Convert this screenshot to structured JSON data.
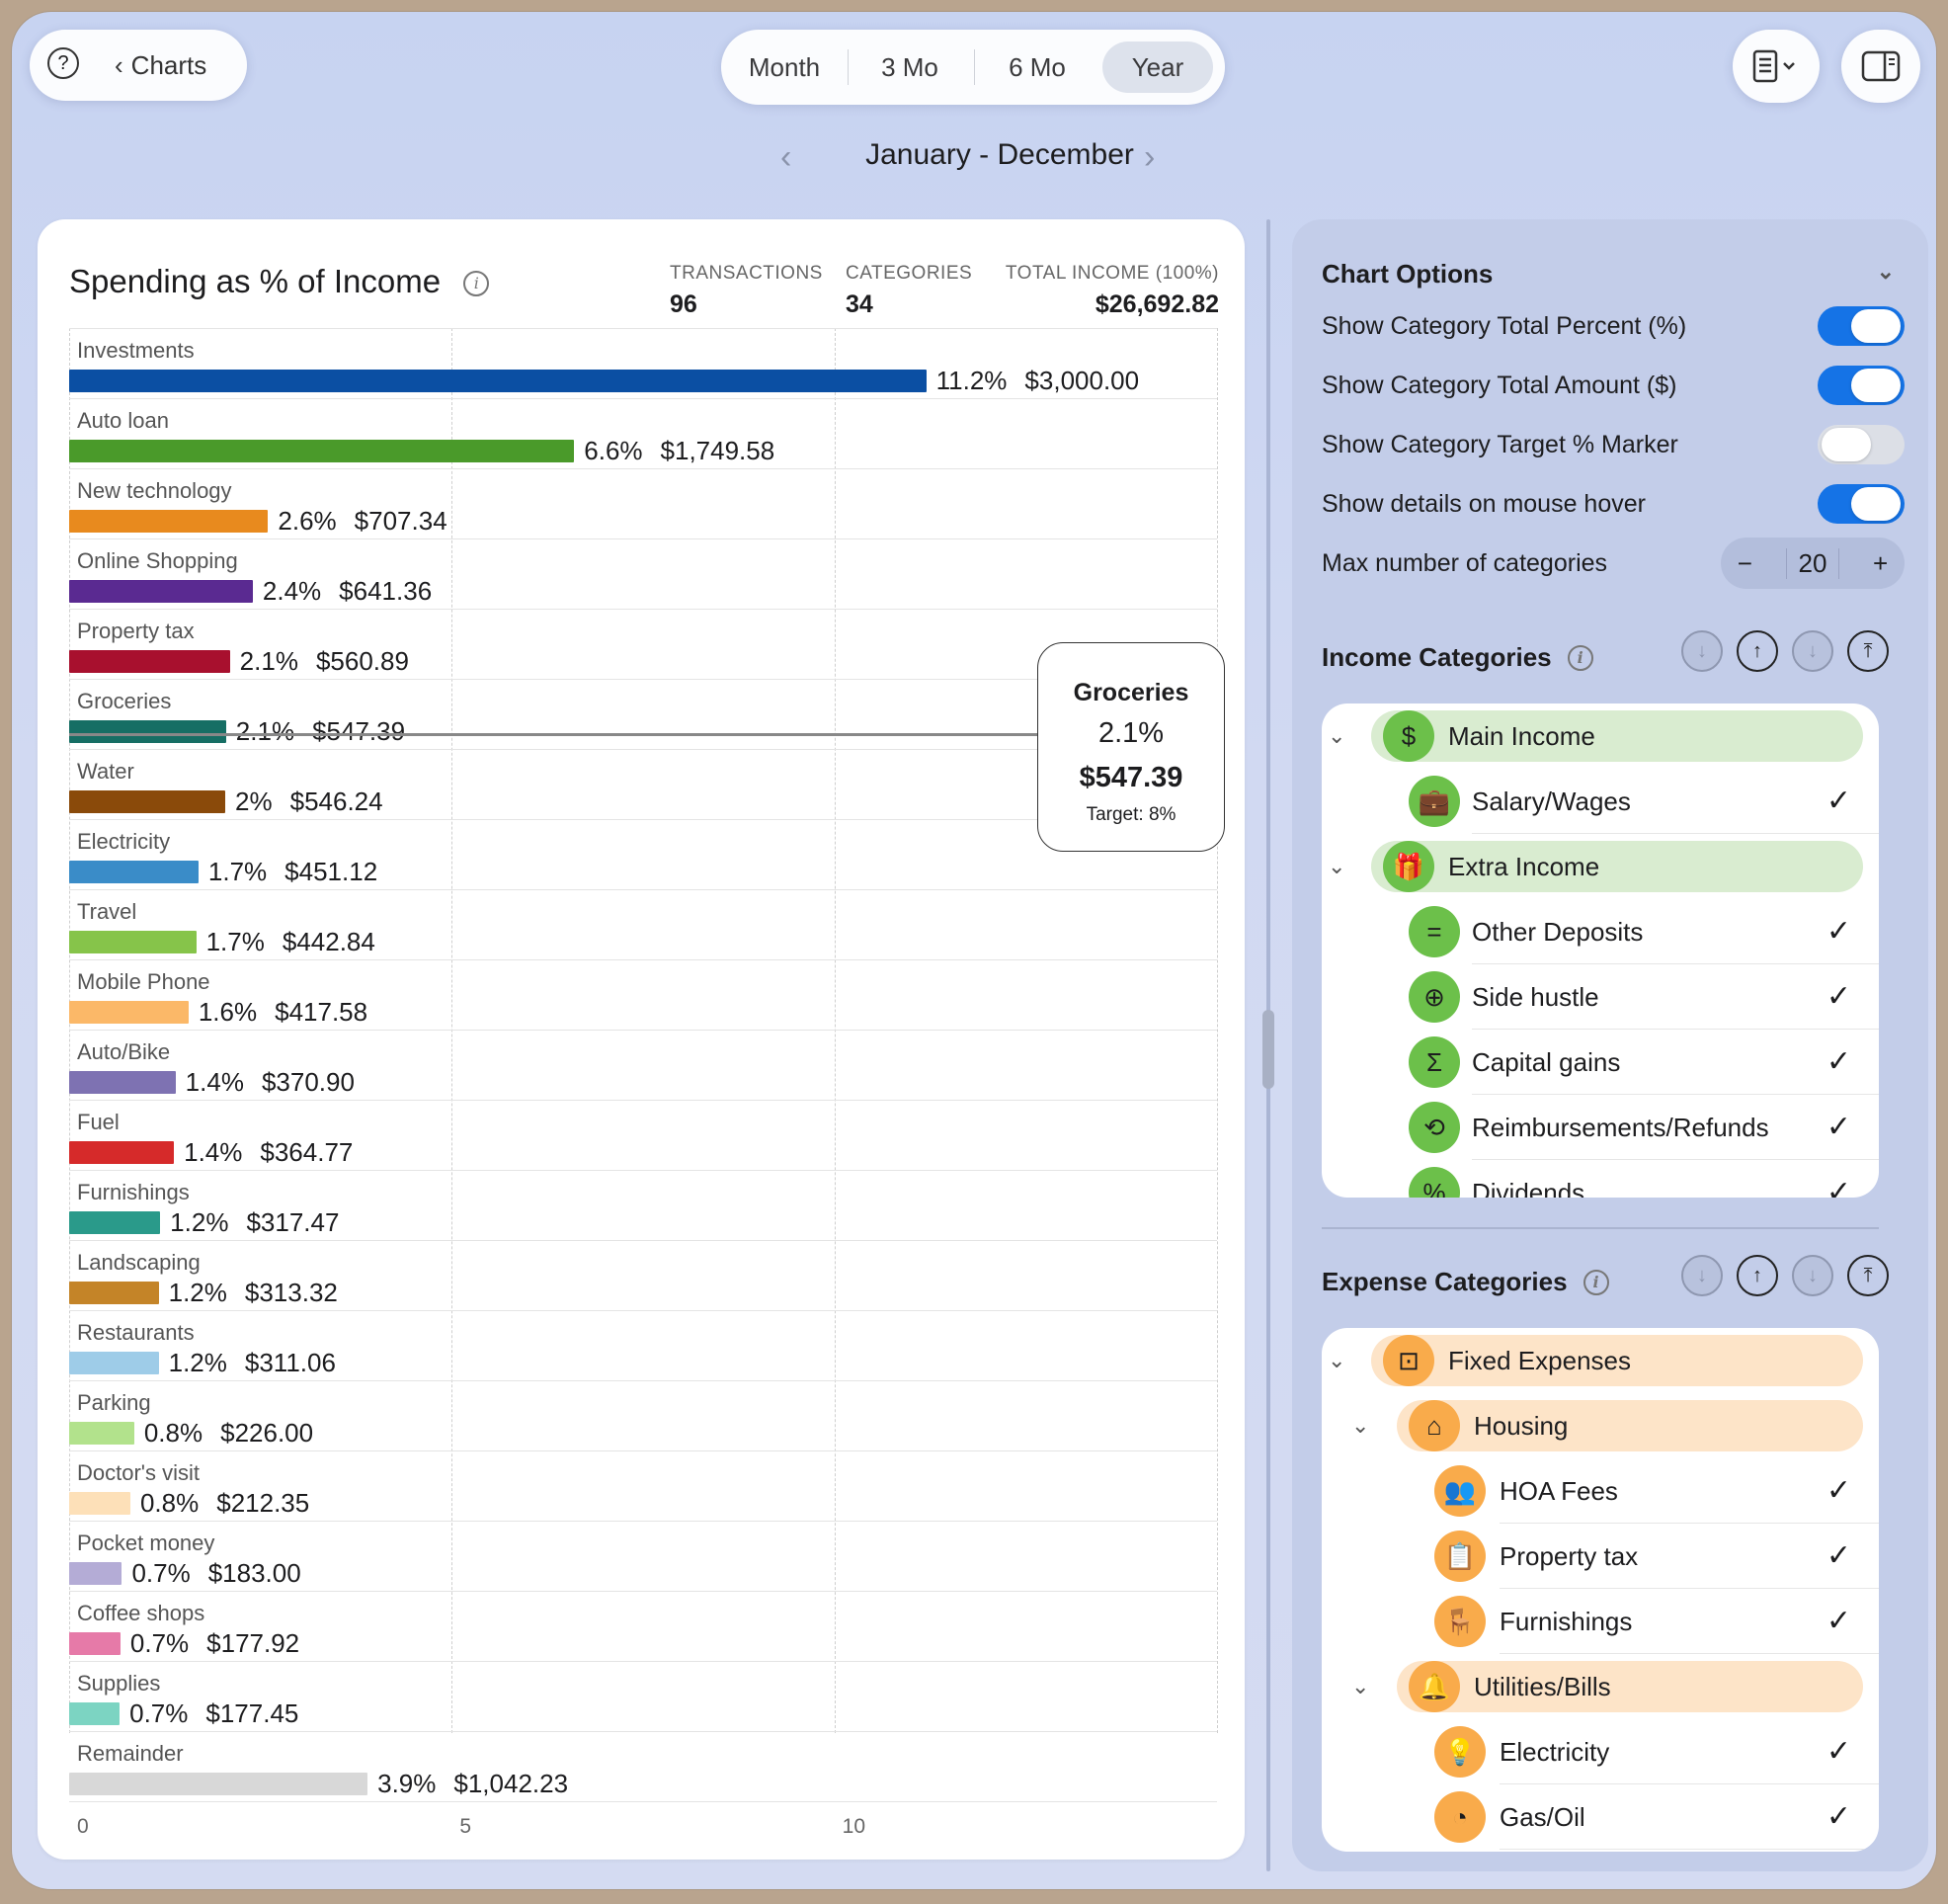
{
  "toolbar": {
    "help_label": "?",
    "back_label": "Charts",
    "segments": [
      "Month",
      "3 Mo",
      "6 Mo",
      "Year"
    ],
    "selected_segment": "Year",
    "period": "January - December"
  },
  "card": {
    "title": "Spending as % of Income",
    "stats": [
      {
        "label": "TRANSACTIONS",
        "value": "96"
      },
      {
        "label": "CATEGORIES",
        "value": "34"
      },
      {
        "label": "TOTAL INCOME (100%)",
        "value": "$26,692.82"
      }
    ]
  },
  "chart_data": {
    "type": "bar",
    "orientation": "horizontal",
    "xlim": [
      0,
      15
    ],
    "xticks": [
      "0",
      "5",
      "10"
    ],
    "bars": [
      {
        "category": "Investments",
        "percent": 11.2,
        "percent_label": "11.2%",
        "amount": "$3,000.00",
        "color": "#0b4fa3"
      },
      {
        "category": "Auto loan",
        "percent": 6.6,
        "percent_label": "6.6%",
        "amount": "$1,749.58",
        "color": "#4a9a2a"
      },
      {
        "category": "New technology",
        "percent": 2.6,
        "percent_label": "2.6%",
        "amount": "$707.34",
        "color": "#e88a1e"
      },
      {
        "category": "Online Shopping",
        "percent": 2.4,
        "percent_label": "2.4%",
        "amount": "$641.36",
        "color": "#5a2a91"
      },
      {
        "category": "Property tax",
        "percent": 2.1,
        "percent_label": "2.1%",
        "amount": "$560.89",
        "color": "#a8102e"
      },
      {
        "category": "Groceries",
        "percent": 2.05,
        "percent_label": "2.1%",
        "amount": "$547.39",
        "color": "#166e64"
      },
      {
        "category": "Water",
        "percent": 2.04,
        "percent_label": "2%",
        "amount": "$546.24",
        "color": "#8a4a0a"
      },
      {
        "category": "Electricity",
        "percent": 1.69,
        "percent_label": "1.7%",
        "amount": "$451.12",
        "color": "#3a8cc8"
      },
      {
        "category": "Travel",
        "percent": 1.66,
        "percent_label": "1.7%",
        "amount": "$442.84",
        "color": "#86c44a"
      },
      {
        "category": "Mobile Phone",
        "percent": 1.56,
        "percent_label": "1.6%",
        "amount": "$417.58",
        "color": "#fbb868"
      },
      {
        "category": "Auto/Bike",
        "percent": 1.39,
        "percent_label": "1.4%",
        "amount": "$370.90",
        "color": "#7e72b2"
      },
      {
        "category": "Fuel",
        "percent": 1.37,
        "percent_label": "1.4%",
        "amount": "$364.77",
        "color": "#d62a2a"
      },
      {
        "category": "Furnishings",
        "percent": 1.19,
        "percent_label": "1.2%",
        "amount": "$317.47",
        "color": "#2a9a8a"
      },
      {
        "category": "Landscaping",
        "percent": 1.17,
        "percent_label": "1.2%",
        "amount": "$313.32",
        "color": "#c48428"
      },
      {
        "category": "Restaurants",
        "percent": 1.17,
        "percent_label": "1.2%",
        "amount": "$311.06",
        "color": "#9ecce8"
      },
      {
        "category": "Parking",
        "percent": 0.85,
        "percent_label": "0.8%",
        "amount": "$226.00",
        "color": "#b2e28c"
      },
      {
        "category": "Doctor's visit",
        "percent": 0.8,
        "percent_label": "0.8%",
        "amount": "$212.35",
        "color": "#fde0b8"
      },
      {
        "category": "Pocket money",
        "percent": 0.69,
        "percent_label": "0.7%",
        "amount": "$183.00",
        "color": "#b4acd6"
      },
      {
        "category": "Coffee shops",
        "percent": 0.67,
        "percent_label": "0.7%",
        "amount": "$177.92",
        "color": "#e67aa8"
      },
      {
        "category": "Supplies",
        "percent": 0.66,
        "percent_label": "0.7%",
        "amount": "$177.45",
        "color": "#7cd4c2"
      },
      {
        "category": "Remainder",
        "percent": 3.9,
        "percent_label": "3.9%",
        "amount": "$1,042.23",
        "color": "#d8d8d8"
      }
    ],
    "tooltip": {
      "category": "Groceries",
      "percent": "2.1%",
      "amount": "$547.39",
      "target": "Target: 8%"
    }
  },
  "options": {
    "title": "Chart Options",
    "rows": [
      {
        "label": "Show Category Total Percent (%)",
        "on": true
      },
      {
        "label": "Show Category Total Amount ($)",
        "on": true
      },
      {
        "label": "Show Category Target % Marker",
        "on": false
      },
      {
        "label": "Show details on mouse hover",
        "on": true
      }
    ],
    "max_label": "Max number of categories",
    "max_value": "20",
    "minus": "−",
    "plus": "+"
  },
  "income": {
    "title": "Income Categories",
    "rows": [
      {
        "kind": "group",
        "label": "Main Income",
        "icon": "$"
      },
      {
        "kind": "item",
        "label": "Salary/Wages",
        "icon": "briefcase"
      },
      {
        "kind": "group",
        "label": "Extra Income",
        "icon": "gift"
      },
      {
        "kind": "item",
        "label": "Other Deposits",
        "icon": "="
      },
      {
        "kind": "item",
        "label": "Side hustle",
        "icon": "lifebuoy"
      },
      {
        "kind": "item",
        "label": "Capital gains",
        "icon": "Σ"
      },
      {
        "kind": "item",
        "label": "Reimbursements/Refunds",
        "icon": "refund"
      },
      {
        "kind": "item",
        "label": "Dividends",
        "icon": "percent"
      }
    ]
  },
  "expense": {
    "title": "Expense Categories",
    "rows": [
      {
        "kind": "group",
        "label": "Fixed Expenses",
        "icon": "pin"
      },
      {
        "kind": "subgroup",
        "label": "Housing",
        "icon": "house"
      },
      {
        "kind": "subitem",
        "label": "HOA Fees",
        "icon": "people"
      },
      {
        "kind": "subitem",
        "label": "Property tax",
        "icon": "clipboard"
      },
      {
        "kind": "subitem",
        "label": "Furnishings",
        "icon": "armchair"
      },
      {
        "kind": "subgroup",
        "label": "Utilities/Bills",
        "icon": "bell"
      },
      {
        "kind": "subitem",
        "label": "Electricity",
        "icon": "lightbulb"
      },
      {
        "kind": "subitem",
        "label": "Gas/Oil",
        "icon": "gauge"
      }
    ]
  },
  "colors": {
    "accent": "#1573e6",
    "income_group": "#d9ecd0",
    "income_icon": "#6cc04a",
    "expense_group": "#fde4c8",
    "expense_icon": "#f9ab4b"
  }
}
